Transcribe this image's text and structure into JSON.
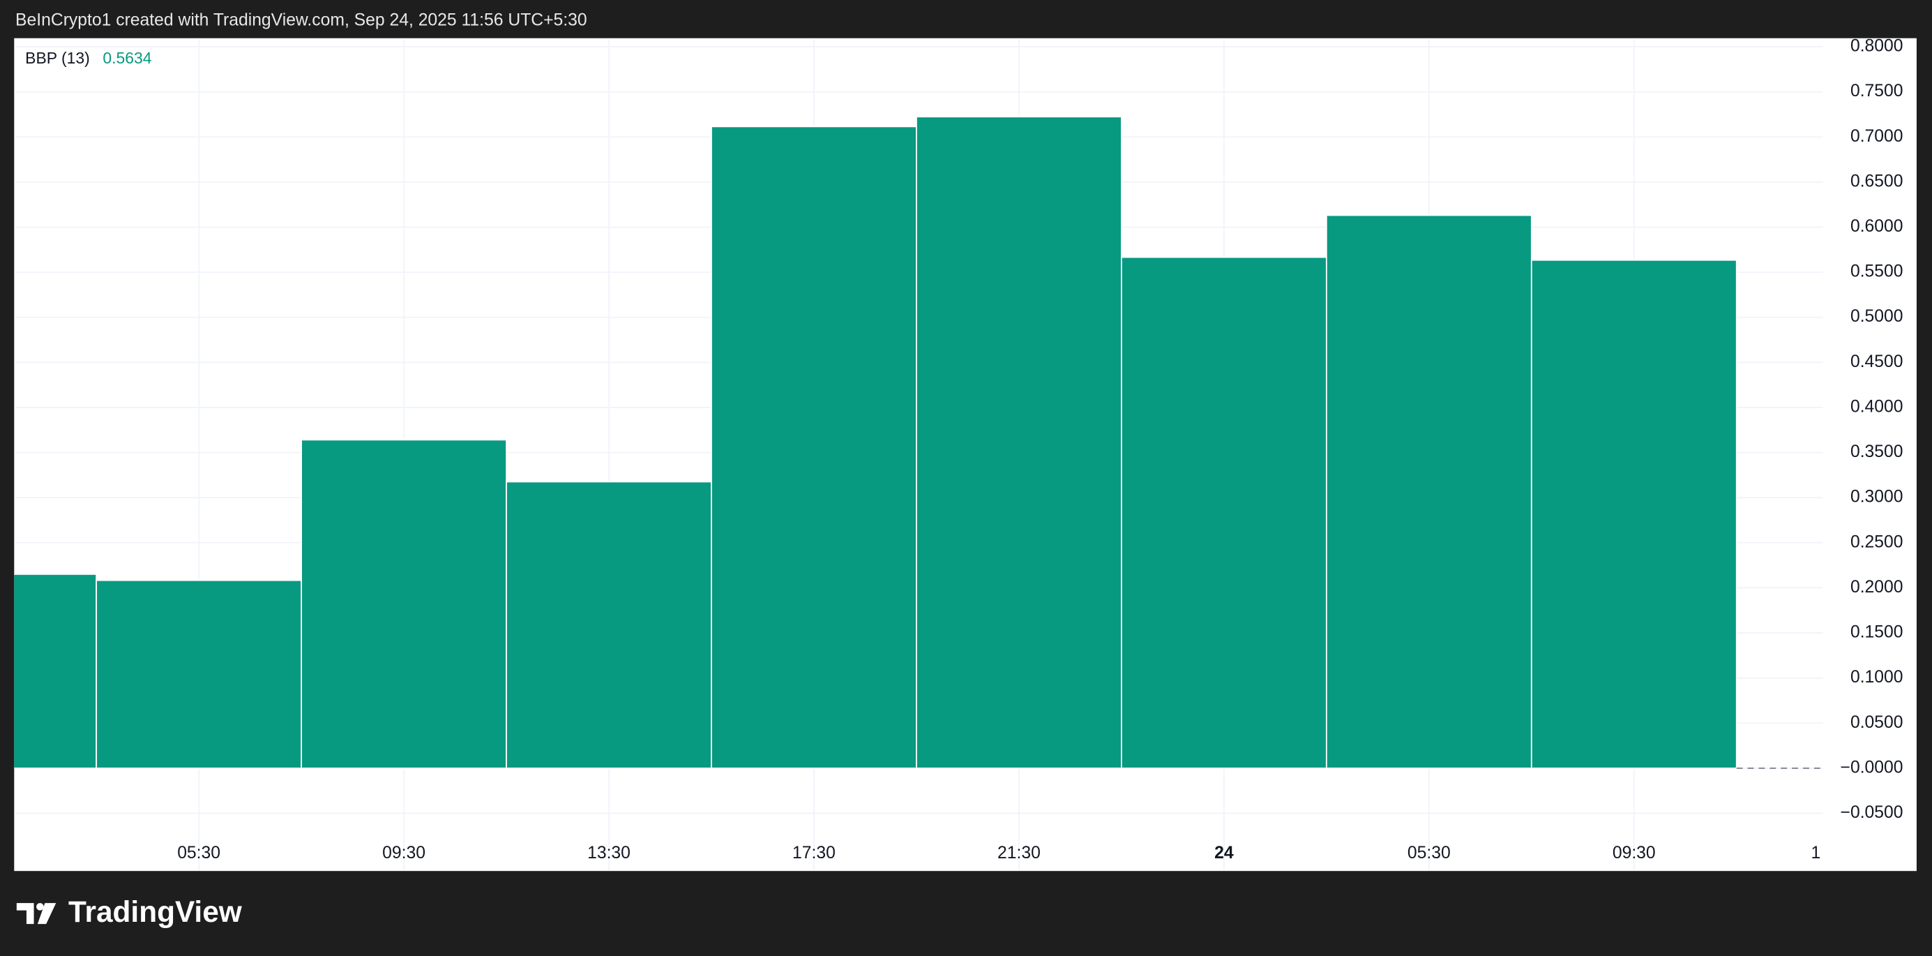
{
  "header": "BeInCrypto1 created with TradingView.com, Sep 24, 2025 11:56 UTC+5:30",
  "chart_data": {
    "type": "bar",
    "categories": [
      null,
      "05:30",
      "09:30",
      "13:30",
      "17:30",
      "21:30",
      "24",
      "05:30",
      "09:30",
      "1"
    ],
    "series": [
      {
        "name": "BBP (13)",
        "color": "#089981",
        "values": [
          0.2151,
          0.2083,
          0.3641,
          0.3176,
          0.7115,
          0.7224,
          0.5666,
          0.6131,
          0.5634,
          null
        ]
      }
    ],
    "ylim": [
      -0.114,
      0.8095
    ],
    "yticks": [
      {
        "value": 0.8,
        "label": "0.8000"
      },
      {
        "value": 0.75,
        "label": "0.7500"
      },
      {
        "value": 0.7,
        "label": "0.7000"
      },
      {
        "value": 0.65,
        "label": "0.6500"
      },
      {
        "value": 0.6,
        "label": "0.6000"
      },
      {
        "value": 0.55,
        "label": "0.5500"
      },
      {
        "value": 0.5,
        "label": "0.5000"
      },
      {
        "value": 0.45,
        "label": "0.4500"
      },
      {
        "value": 0.4,
        "label": "0.4000"
      },
      {
        "value": 0.35,
        "label": "0.3500"
      },
      {
        "value": 0.3,
        "label": "0.3000"
      },
      {
        "value": 0.25,
        "label": "0.2500"
      },
      {
        "value": 0.2,
        "label": "0.2000"
      },
      {
        "value": 0.15,
        "label": "0.1500"
      },
      {
        "value": 0.1,
        "label": "0.1000"
      },
      {
        "value": 0.05,
        "label": "0.0500"
      },
      {
        "value": 0,
        "label": "−0.0000"
      },
      {
        "value": -0.05,
        "label": "−0.0500"
      }
    ],
    "grid": true
  },
  "footer": {
    "logo": "TradingView"
  }
}
